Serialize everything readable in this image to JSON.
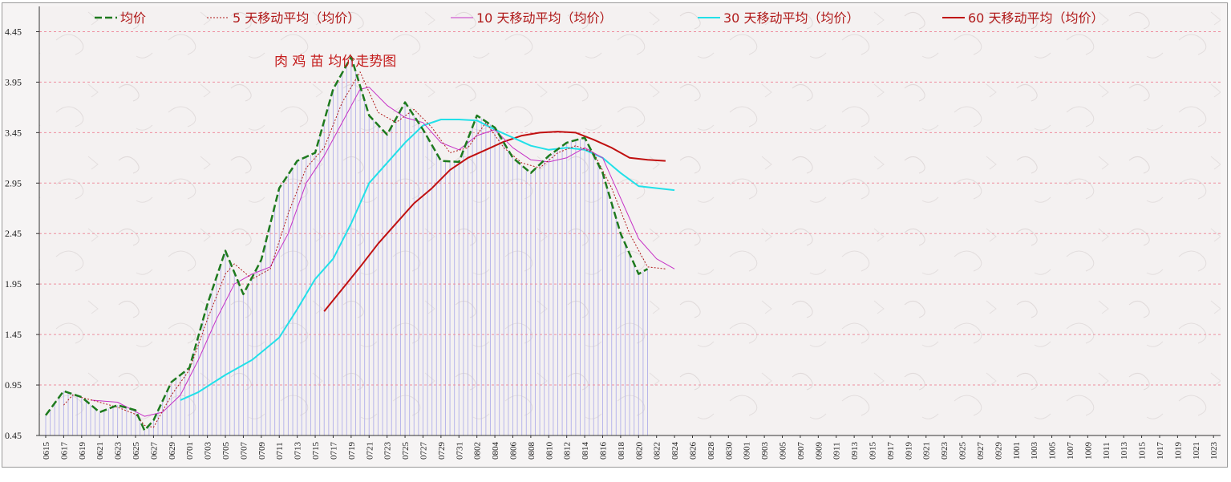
{
  "chart_data": {
    "type": "line",
    "title": "肉 鸡 苗 均价走势图",
    "xlabel": "",
    "ylabel": "",
    "ylim": [
      0.45,
      4.7
    ],
    "yticks": [
      0.45,
      0.95,
      1.45,
      1.95,
      2.45,
      2.95,
      3.45,
      3.95,
      4.45
    ],
    "ytick_labels": [
      "0.45",
      "0.95",
      "1.45",
      "1.95",
      "2.45",
      "2.95",
      "3.45",
      "3.95",
      "4.45"
    ],
    "grid": "horizontal dashed",
    "legend_position": "top",
    "x_tick_labels": [
      "0615",
      "0617",
      "0619",
      "0621",
      "0623",
      "0625",
      "0627",
      "0629",
      "0701",
      "0703",
      "0705",
      "0707",
      "0709",
      "0711",
      "0713",
      "0715",
      "0717",
      "0719",
      "0721",
      "0723",
      "0725",
      "0727",
      "0729",
      "0731",
      "0802",
      "0804",
      "0806",
      "0808",
      "0810",
      "0812",
      "0814",
      "0816",
      "0818",
      "0820",
      "0822",
      "0824",
      "0826",
      "0828",
      "0830",
      "0901",
      "0903",
      "0905",
      "0907",
      "0909",
      "0911",
      "0913",
      "0915",
      "0917",
      "0919",
      "0921",
      "0923",
      "0925",
      "0927",
      "0929",
      "1001",
      "1003",
      "1005",
      "1007",
      "1009",
      "1011",
      "1013",
      "1015",
      "1017",
      "1019",
      "1021",
      "1023"
    ],
    "series": [
      {
        "name": "均价",
        "color": "#1e7a1e",
        "style": "dashed-thick",
        "points": [
          [
            0,
            0.65
          ],
          [
            2,
            0.89
          ],
          [
            4,
            0.83
          ],
          [
            6,
            0.68
          ],
          [
            8,
            0.75
          ],
          [
            10,
            0.7
          ],
          [
            11,
            0.5
          ],
          [
            12,
            0.6
          ],
          [
            14,
            0.98
          ],
          [
            16,
            1.12
          ],
          [
            18,
            1.75
          ],
          [
            20,
            2.28
          ],
          [
            22,
            1.85
          ],
          [
            24,
            2.19
          ],
          [
            26,
            2.9
          ],
          [
            28,
            3.17
          ],
          [
            30,
            3.25
          ],
          [
            32,
            3.88
          ],
          [
            34,
            4.2
          ],
          [
            36,
            3.62
          ],
          [
            38,
            3.43
          ],
          [
            40,
            3.75
          ],
          [
            42,
            3.48
          ],
          [
            44,
            3.17
          ],
          [
            46,
            3.16
          ],
          [
            48,
            3.62
          ],
          [
            50,
            3.5
          ],
          [
            52,
            3.2
          ],
          [
            54,
            3.05
          ],
          [
            56,
            3.22
          ],
          [
            58,
            3.35
          ],
          [
            60,
            3.4
          ],
          [
            62,
            3.05
          ],
          [
            64,
            2.45
          ],
          [
            66,
            2.05
          ],
          [
            67,
            2.1
          ]
        ]
      },
      {
        "name": "5 天移动平均（均价）",
        "color": "#b01a1a",
        "style": "dotted-thin",
        "points": [
          [
            2,
            0.75
          ],
          [
            3,
            0.85
          ],
          [
            6,
            0.78
          ],
          [
            8,
            0.73
          ],
          [
            10,
            0.66
          ],
          [
            11,
            0.55
          ],
          [
            12,
            0.53
          ],
          [
            14,
            0.85
          ],
          [
            16,
            1.1
          ],
          [
            18,
            1.6
          ],
          [
            20,
            2.05
          ],
          [
            21,
            2.15
          ],
          [
            23,
            2.0
          ],
          [
            25,
            2.1
          ],
          [
            27,
            2.65
          ],
          [
            29,
            3.1
          ],
          [
            31,
            3.3
          ],
          [
            33,
            3.75
          ],
          [
            35,
            4.05
          ],
          [
            37,
            3.65
          ],
          [
            39,
            3.55
          ],
          [
            41,
            3.68
          ],
          [
            43,
            3.5
          ],
          [
            45,
            3.25
          ],
          [
            47,
            3.3
          ],
          [
            49,
            3.55
          ],
          [
            51,
            3.3
          ],
          [
            53,
            3.15
          ],
          [
            55,
            3.1
          ],
          [
            57,
            3.25
          ],
          [
            59,
            3.32
          ],
          [
            61,
            3.25
          ],
          [
            63,
            2.9
          ],
          [
            65,
            2.45
          ],
          [
            67,
            2.12
          ],
          [
            69,
            2.1
          ]
        ]
      },
      {
        "name": "10 天移动平均（均价）",
        "color": "#c632c6",
        "style": "solid-thin",
        "points": [
          [
            5,
            0.8
          ],
          [
            8,
            0.78
          ],
          [
            11,
            0.64
          ],
          [
            13,
            0.68
          ],
          [
            15,
            0.85
          ],
          [
            17,
            1.2
          ],
          [
            19,
            1.6
          ],
          [
            21,
            1.95
          ],
          [
            23,
            2.05
          ],
          [
            25,
            2.12
          ],
          [
            27,
            2.45
          ],
          [
            29,
            2.95
          ],
          [
            31,
            3.22
          ],
          [
            33,
            3.55
          ],
          [
            35,
            3.88
          ],
          [
            36,
            3.9
          ],
          [
            38,
            3.72
          ],
          [
            40,
            3.6
          ],
          [
            42,
            3.55
          ],
          [
            44,
            3.35
          ],
          [
            46,
            3.28
          ],
          [
            48,
            3.42
          ],
          [
            50,
            3.48
          ],
          [
            52,
            3.3
          ],
          [
            54,
            3.18
          ],
          [
            56,
            3.16
          ],
          [
            58,
            3.2
          ],
          [
            60,
            3.3
          ],
          [
            62,
            3.2
          ],
          [
            64,
            2.8
          ],
          [
            66,
            2.4
          ],
          [
            68,
            2.2
          ],
          [
            70,
            2.1
          ]
        ]
      },
      {
        "name": "30 天移动平均（均价）",
        "color": "#22e0e8",
        "style": "solid-thick",
        "points": [
          [
            15,
            0.8
          ],
          [
            17,
            0.88
          ],
          [
            20,
            1.05
          ],
          [
            23,
            1.2
          ],
          [
            26,
            1.42
          ],
          [
            28,
            1.7
          ],
          [
            30,
            2.0
          ],
          [
            32,
            2.2
          ],
          [
            34,
            2.55
          ],
          [
            36,
            2.95
          ],
          [
            38,
            3.15
          ],
          [
            40,
            3.35
          ],
          [
            42,
            3.52
          ],
          [
            44,
            3.58
          ],
          [
            46,
            3.58
          ],
          [
            48,
            3.57
          ],
          [
            50,
            3.48
          ],
          [
            52,
            3.4
          ],
          [
            54,
            3.32
          ],
          [
            56,
            3.28
          ],
          [
            58,
            3.3
          ],
          [
            60,
            3.28
          ],
          [
            62,
            3.2
          ],
          [
            64,
            3.05
          ],
          [
            66,
            2.92
          ],
          [
            68,
            2.9
          ],
          [
            70,
            2.88
          ]
        ]
      },
      {
        "name": "60 天移动平均（均价）",
        "color": "#c01010",
        "style": "solid-thick",
        "points": [
          [
            31,
            1.68
          ],
          [
            33,
            1.9
          ],
          [
            35,
            2.12
          ],
          [
            37,
            2.35
          ],
          [
            39,
            2.55
          ],
          [
            41,
            2.75
          ],
          [
            43,
            2.9
          ],
          [
            45,
            3.08
          ],
          [
            47,
            3.2
          ],
          [
            49,
            3.28
          ],
          [
            51,
            3.36
          ],
          [
            53,
            3.42
          ],
          [
            55,
            3.45
          ],
          [
            57,
            3.46
          ],
          [
            59,
            3.45
          ],
          [
            61,
            3.38
          ],
          [
            63,
            3.3
          ],
          [
            65,
            3.2
          ],
          [
            67,
            3.18
          ],
          [
            69,
            3.17
          ]
        ]
      }
    ]
  }
}
